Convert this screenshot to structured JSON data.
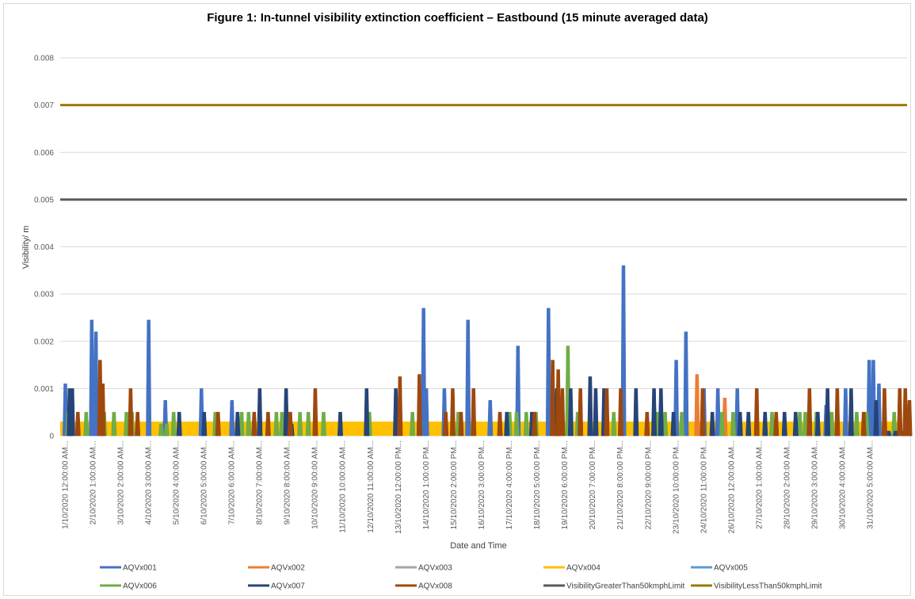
{
  "chart_data": {
    "type": "line",
    "title": "Figure 1: In-tunnel visibility extinction coefficient – Eastbound (15 minute averaged data)",
    "xlabel": "Date and Time",
    "ylabel": "Visibility/ m",
    "ylim": [
      0,
      0.008
    ],
    "yticks": [
      "0",
      "0.001",
      "0.002",
      "0.003",
      "0.004",
      "0.005",
      "0.006",
      "0.007",
      "0.008"
    ],
    "grid": true,
    "legend_position": "bottom",
    "x_tick_labels": [
      "1/10/2020 12:00:00 AM...",
      "2/10/2020 1:00:00 AM...",
      "3/10/2020 2:00:00 AM...",
      "4/10/2020 3:00:00 AM...",
      "5/10/2020 4:00:00 AM...",
      "6/10/2020 5:00:00 AM...",
      "7/10/2020 6:00:00 AM...",
      "8/10/2020 7:00:00 AM...",
      "9/10/2020 8:00:00 AM...",
      "10/10/2020 9:00:00 AM...",
      "11/10/2020 10:00:00 AM...",
      "12/10/2020 11:00:00 AM...",
      "13/10/2020 12:00:00 PM...",
      "14/10/2020 1:00:00 PM...",
      "15/10/2020 2:00:00 PM...",
      "16/10/2020 3:00:00 PM...",
      "17/10/2020 4:00:00 PM...",
      "18/10/2020 5:00:00 PM...",
      "19/10/2020 6:00:00 PM...",
      "20/10/2020 7:00:00 PM...",
      "21/10/2020 8:00:00 PM...",
      "22/10/2020 9:00:00 PM...",
      "23/10/2020 10:00:00 PM...",
      "24/10/2020 11:00:00 PM...",
      "26/10/2020 12:00:00 AM...",
      "27/10/2020 1:00:00 AM...",
      "28/10/2020 2:00:00 AM...",
      "29/10/2020 3:00:00 AM...",
      "30/10/2020 4:00:00 AM...",
      "31/10/2020 5:00:00 AM..."
    ],
    "series": [
      {
        "name": "AQVx001",
        "color": "#4472C4",
        "spikes": [
          [
            0.1,
            0.0011
          ],
          [
            1.05,
            0.00245
          ],
          [
            1.2,
            0.0022
          ],
          [
            3.1,
            0.00245
          ],
          [
            3.7,
            0.00075
          ],
          [
            5.0,
            0.001
          ],
          [
            6.1,
            0.00075
          ],
          [
            13.0,
            0.0027
          ],
          [
            13.1,
            0.001
          ],
          [
            13.75,
            0.001
          ],
          [
            14.6,
            0.00245
          ],
          [
            15.4,
            0.00075
          ],
          [
            16.4,
            0.0019
          ],
          [
            17.5,
            0.0027
          ],
          [
            20.2,
            0.0036
          ],
          [
            22.1,
            0.0016
          ],
          [
            22.45,
            0.0022
          ],
          [
            23.1,
            0.001
          ],
          [
            23.6,
            0.001
          ],
          [
            24.3,
            0.001
          ],
          [
            27.5,
            0.00065
          ],
          [
            28.2,
            0.001
          ],
          [
            29.05,
            0.0016
          ],
          [
            29.2,
            0.0016
          ],
          [
            29.4,
            0.0011
          ]
        ]
      },
      {
        "name": "AQVx002",
        "color": "#ED7D31",
        "spikes": [
          [
            22.85,
            0.0013
          ],
          [
            23.85,
            0.0008
          ]
        ]
      },
      {
        "name": "AQVx003",
        "color": "#A5A5A5",
        "spikes": []
      },
      {
        "name": "AQVx004",
        "color": "#FFC000",
        "spikes": []
      },
      {
        "name": "AQVx005",
        "color": "#5B9BD5",
        "spikes": []
      },
      {
        "name": "AQVx006",
        "color": "#70AD47",
        "spikes": [
          [
            0.2,
            0.0005
          ],
          [
            0.85,
            0.0005
          ],
          [
            1.5,
            0.0005
          ],
          [
            1.85,
            0.0005
          ],
          [
            2.3,
            0.0005
          ],
          [
            2.5,
            0.0005
          ],
          [
            3.55,
            0.00025
          ],
          [
            3.75,
            0.00025
          ],
          [
            4.0,
            0.0005
          ],
          [
            5.5,
            0.0005
          ],
          [
            6.45,
            0.0005
          ],
          [
            6.7,
            0.0005
          ],
          [
            7.7,
            0.0005
          ],
          [
            7.9,
            0.0005
          ],
          [
            8.2,
            0.0005
          ],
          [
            8.55,
            0.0005
          ],
          [
            8.85,
            0.0005
          ],
          [
            9.4,
            0.0005
          ],
          [
            11.05,
            0.0005
          ],
          [
            12.6,
            0.0005
          ],
          [
            14.25,
            0.0005
          ],
          [
            16.1,
            0.0005
          ],
          [
            16.35,
            0.0005
          ],
          [
            16.7,
            0.0005
          ],
          [
            17.05,
            0.0005
          ],
          [
            18.2,
            0.0019
          ],
          [
            18.55,
            0.0005
          ],
          [
            19.85,
            0.0005
          ],
          [
            21.4,
            0.0005
          ],
          [
            21.7,
            0.0005
          ],
          [
            22.3,
            0.0005
          ],
          [
            23.75,
            0.0005
          ],
          [
            24.15,
            0.0005
          ],
          [
            25.55,
            0.0005
          ],
          [
            26.55,
            0.0005
          ],
          [
            26.75,
            0.0005
          ],
          [
            27.15,
            0.0005
          ],
          [
            27.7,
            0.0005
          ],
          [
            28.6,
            0.0005
          ],
          [
            28.95,
            0.0005
          ],
          [
            29.95,
            0.0005
          ]
        ]
      },
      {
        "name": "AQVx007",
        "color": "#264478",
        "spikes": [
          [
            0.25,
            0.001
          ],
          [
            0.35,
            0.001
          ],
          [
            4.2,
            0.0005
          ],
          [
            5.1,
            0.0005
          ],
          [
            6.3,
            0.0005
          ],
          [
            7.1,
            0.001
          ],
          [
            8.05,
            0.001
          ],
          [
            8.25,
            0.00025
          ],
          [
            10.0,
            0.0005
          ],
          [
            10.95,
            0.001
          ],
          [
            12.0,
            0.001
          ],
          [
            16.0,
            0.0005
          ],
          [
            16.9,
            0.0005
          ],
          [
            17.8,
            0.001
          ],
          [
            18.3,
            0.001
          ],
          [
            19.0,
            0.00125
          ],
          [
            19.2,
            0.001
          ],
          [
            19.5,
            0.001
          ],
          [
            20.65,
            0.001
          ],
          [
            21.3,
            0.001
          ],
          [
            21.55,
            0.001
          ],
          [
            22.0,
            0.0005
          ],
          [
            23.4,
            0.0005
          ],
          [
            24.4,
            0.0005
          ],
          [
            24.7,
            0.0005
          ],
          [
            25.3,
            0.0005
          ],
          [
            26.0,
            0.0005
          ],
          [
            26.4,
            0.0005
          ],
          [
            27.2,
            0.0005
          ],
          [
            27.55,
            0.001
          ],
          [
            28.4,
            0.001
          ],
          [
            29.3,
            0.00075
          ],
          [
            29.75,
            0.0001
          ],
          [
            30.0,
            0.0001
          ],
          [
            30.3,
            0.0001
          ],
          [
            30.5,
            0.0002
          ]
        ]
      },
      {
        "name": "AQVx008",
        "color": "#9E480E",
        "spikes": [
          [
            0.55,
            0.0005
          ],
          [
            1.35,
            0.0016
          ],
          [
            1.45,
            0.0011
          ],
          [
            2.45,
            0.001
          ],
          [
            2.7,
            0.0005
          ],
          [
            5.6,
            0.0005
          ],
          [
            6.9,
            0.0005
          ],
          [
            7.4,
            0.0005
          ],
          [
            8.2,
            0.0005
          ],
          [
            9.1,
            0.001
          ],
          [
            12.15,
            0.00125
          ],
          [
            12.85,
            0.0013
          ],
          [
            13.8,
            0.0005
          ],
          [
            14.05,
            0.001
          ],
          [
            14.35,
            0.0005
          ],
          [
            14.8,
            0.001
          ],
          [
            15.75,
            0.0005
          ],
          [
            17.0,
            0.0005
          ],
          [
            17.65,
            0.0016
          ],
          [
            17.85,
            0.0014
          ],
          [
            18.0,
            0.001
          ],
          [
            18.65,
            0.001
          ],
          [
            19.6,
            0.001
          ],
          [
            20.1,
            0.001
          ],
          [
            21.05,
            0.0005
          ],
          [
            23.05,
            0.001
          ],
          [
            25.0,
            0.001
          ],
          [
            25.7,
            0.0005
          ],
          [
            26.9,
            0.001
          ],
          [
            27.9,
            0.001
          ],
          [
            28.85,
            0.0005
          ],
          [
            29.6,
            0.001
          ],
          [
            30.15,
            0.001
          ],
          [
            30.35,
            0.001
          ],
          [
            30.5,
            0.00075
          ]
        ]
      },
      {
        "name": "VisibilityGreaterThan50kmphLimit",
        "color": "#595959",
        "constant": 0.005
      },
      {
        "name": "VisibilityLessThan50kmphLimit",
        "color": "#9C7A00",
        "constant": 0.007
      }
    ],
    "baseline_band": {
      "series": "AQVx004",
      "value": 0.0003
    }
  }
}
